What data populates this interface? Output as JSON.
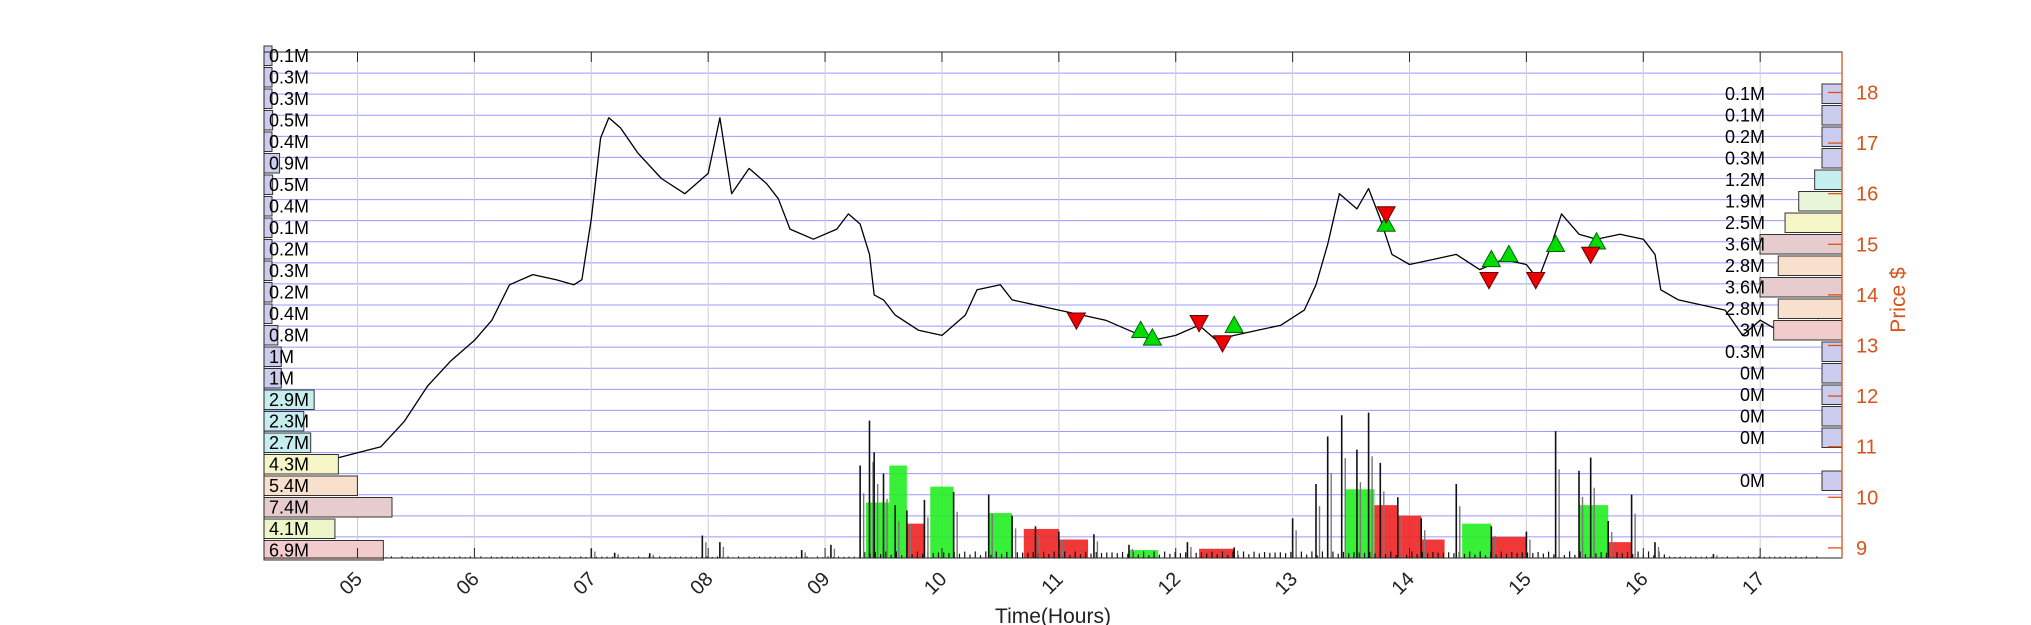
{
  "chart_data": {
    "type": "line",
    "xlabel": "Time(Hours)",
    "ylabel": "Price $",
    "xlim": [
      4.2,
      17.7
    ],
    "ylim": [
      8.8,
      18.8
    ],
    "x_ticks": [
      "05",
      "06",
      "07",
      "08",
      "09",
      "10",
      "11",
      "12",
      "13",
      "14",
      "15",
      "16",
      "17"
    ],
    "y_ticks": [
      9,
      10,
      11,
      12,
      13,
      14,
      15,
      16,
      17,
      18
    ],
    "grid": true,
    "colors": {
      "price_line": "#000000",
      "right_axis": "#d95319",
      "grid": "#8080ff",
      "buy_marker": "#00dd00",
      "sell_marker": "#ee0000",
      "volume_up": "#22ee22",
      "volume_down": "#ee2222"
    },
    "price_series": [
      [
        4.7,
        10.7
      ],
      [
        4.95,
        10.85
      ],
      [
        5.2,
        11.0
      ],
      [
        5.4,
        11.5
      ],
      [
        5.6,
        12.2
      ],
      [
        5.8,
        12.7
      ],
      [
        6.0,
        13.1
      ],
      [
        6.15,
        13.5
      ],
      [
        6.3,
        14.2
      ],
      [
        6.5,
        14.4
      ],
      [
        6.7,
        14.3
      ],
      [
        6.85,
        14.2
      ],
      [
        6.92,
        14.3
      ],
      [
        7.0,
        15.5
      ],
      [
        7.08,
        17.1
      ],
      [
        7.15,
        17.5
      ],
      [
        7.25,
        17.3
      ],
      [
        7.4,
        16.8
      ],
      [
        7.6,
        16.3
      ],
      [
        7.8,
        16.0
      ],
      [
        8.0,
        16.4
      ],
      [
        8.1,
        17.5
      ],
      [
        8.2,
        16.0
      ],
      [
        8.35,
        16.5
      ],
      [
        8.5,
        16.2
      ],
      [
        8.6,
        15.9
      ],
      [
        8.7,
        15.3
      ],
      [
        8.9,
        15.1
      ],
      [
        9.1,
        15.3
      ],
      [
        9.2,
        15.6
      ],
      [
        9.3,
        15.4
      ],
      [
        9.38,
        14.8
      ],
      [
        9.42,
        14.0
      ],
      [
        9.5,
        13.9
      ],
      [
        9.6,
        13.6
      ],
      [
        9.8,
        13.3
      ],
      [
        10.0,
        13.2
      ],
      [
        10.2,
        13.6
      ],
      [
        10.3,
        14.1
      ],
      [
        10.5,
        14.2
      ],
      [
        10.6,
        13.9
      ],
      [
        10.8,
        13.8
      ],
      [
        11.0,
        13.7
      ],
      [
        11.2,
        13.6
      ],
      [
        11.4,
        13.5
      ],
      [
        11.6,
        13.3
      ],
      [
        11.8,
        13.1
      ],
      [
        12.0,
        13.2
      ],
      [
        12.2,
        13.4
      ],
      [
        12.35,
        13.1
      ],
      [
        12.5,
        13.2
      ],
      [
        12.7,
        13.3
      ],
      [
        12.9,
        13.4
      ],
      [
        13.1,
        13.7
      ],
      [
        13.2,
        14.2
      ],
      [
        13.3,
        15.0
      ],
      [
        13.4,
        16.0
      ],
      [
        13.55,
        15.7
      ],
      [
        13.65,
        16.1
      ],
      [
        13.75,
        15.5
      ],
      [
        13.85,
        14.8
      ],
      [
        14.0,
        14.6
      ],
      [
        14.2,
        14.7
      ],
      [
        14.4,
        14.8
      ],
      [
        14.6,
        14.5
      ],
      [
        14.8,
        14.7
      ],
      [
        15.0,
        14.6
      ],
      [
        15.1,
        14.3
      ],
      [
        15.2,
        14.9
      ],
      [
        15.3,
        15.6
      ],
      [
        15.45,
        15.2
      ],
      [
        15.6,
        15.1
      ],
      [
        15.8,
        15.2
      ],
      [
        16.0,
        15.1
      ],
      [
        16.1,
        14.8
      ],
      [
        16.15,
        14.1
      ],
      [
        16.3,
        13.9
      ],
      [
        16.5,
        13.8
      ],
      [
        16.7,
        13.7
      ],
      [
        16.85,
        13.2
      ],
      [
        17.0,
        13.5
      ],
      [
        17.15,
        13.3
      ],
      [
        17.35,
        13.4
      ],
      [
        17.5,
        13.5
      ]
    ],
    "buy_markers": [
      [
        11.7,
        13.3
      ],
      [
        11.8,
        13.15
      ],
      [
        12.5,
        13.4
      ],
      [
        13.8,
        15.4
      ],
      [
        14.7,
        14.7
      ],
      [
        14.85,
        14.8
      ],
      [
        15.25,
        15.0
      ],
      [
        15.6,
        15.05
      ]
    ],
    "sell_markers": [
      [
        11.15,
        13.5
      ],
      [
        12.2,
        13.45
      ],
      [
        12.4,
        13.05
      ],
      [
        13.8,
        15.6
      ],
      [
        14.68,
        14.3
      ],
      [
        15.08,
        14.3
      ],
      [
        15.55,
        14.8
      ]
    ],
    "volume_profile_left": {
      "labels": [
        "0.1M",
        "0.3M",
        "0.3M",
        "0.5M",
        "0.4M",
        "0.9M",
        "0.5M",
        "0.4M",
        "0.1M",
        "0.2M",
        "0.3M",
        "0.2M",
        "0.4M",
        "0.8M",
        "1M",
        "1M",
        "2.9M",
        "2.3M",
        "2.7M",
        "4.3M",
        "5.4M",
        "7.4M",
        "4.1M",
        "6.9M"
      ],
      "values": [
        0.1,
        0.3,
        0.3,
        0.5,
        0.4,
        0.9,
        0.5,
        0.4,
        0.1,
        0.2,
        0.3,
        0.2,
        0.4,
        0.8,
        1.0,
        1.0,
        2.9,
        2.3,
        2.7,
        4.3,
        5.4,
        7.4,
        4.1,
        6.9
      ],
      "colors": [
        "#ccccee",
        "#ccccee",
        "#ccccee",
        "#ccccee",
        "#ccccee",
        "#ccccee",
        "#ccccee",
        "#ccccee",
        "#ccccee",
        "#ccccee",
        "#ccccee",
        "#ccccee",
        "#ccccee",
        "#ccccee",
        "#ccccee",
        "#ccccee",
        "#c7eeee",
        "#c7eeee",
        "#c7eeee",
        "#f5f5c8",
        "#f8e0cc",
        "#e6cccc",
        "#eef5c8",
        "#f2cccc"
      ]
    },
    "volume_profile_right": {
      "labels": [
        "0.1M",
        "0.1M",
        "0.2M",
        "0.3M",
        "1.2M",
        "1.9M",
        "2.5M",
        "3.6M",
        "2.8M",
        "3.6M",
        "2.8M",
        "3M",
        "0.3M",
        "0M",
        "0M",
        "0M",
        "0M",
        "",
        "0M"
      ],
      "values": [
        0.1,
        0.1,
        0.2,
        0.3,
        1.2,
        1.9,
        2.5,
        3.6,
        2.8,
        3.6,
        2.8,
        3.0,
        0.3,
        0,
        0,
        0,
        0,
        0,
        0
      ],
      "colors": [
        "#ccccee",
        "#ccccee",
        "#ccccee",
        "#ccccee",
        "#c7eeee",
        "#e8f5d8",
        "#f5f5c8",
        "#e6cccc",
        "#f8e0cc",
        "#e6cccc",
        "#f8e0cc",
        "#f2cccc",
        "#ccccee",
        "#ccccee",
        "#ccccee",
        "#ccccee",
        "#ccccee",
        "#ffffff",
        "#ccccee"
      ]
    },
    "volume_spikes": [
      [
        7.0,
        0.35
      ],
      [
        7.2,
        0.2
      ],
      [
        7.5,
        0.18
      ],
      [
        7.95,
        0.85
      ],
      [
        8.1,
        0.6
      ],
      [
        8.8,
        0.3
      ],
      [
        9.05,
        0.5
      ],
      [
        9.3,
        3.5
      ],
      [
        9.38,
        5.2
      ],
      [
        9.42,
        4.0
      ],
      [
        9.5,
        3.2
      ],
      [
        9.6,
        2.0
      ],
      [
        9.7,
        1.8
      ],
      [
        9.85,
        2.2
      ],
      [
        10.1,
        2.5
      ],
      [
        10.4,
        2.4
      ],
      [
        10.6,
        1.6
      ],
      [
        10.8,
        1.2
      ],
      [
        11.0,
        1.0
      ],
      [
        11.3,
        0.9
      ],
      [
        11.6,
        0.5
      ],
      [
        12.1,
        0.6
      ],
      [
        12.5,
        0.4
      ],
      [
        13.0,
        1.5
      ],
      [
        13.2,
        2.8
      ],
      [
        13.3,
        4.6
      ],
      [
        13.42,
        5.4
      ],
      [
        13.55,
        4.1
      ],
      [
        13.65,
        5.5
      ],
      [
        13.75,
        3.6
      ],
      [
        13.9,
        2.3
      ],
      [
        14.1,
        1.5
      ],
      [
        14.4,
        2.8
      ],
      [
        14.7,
        1.2
      ],
      [
        15.0,
        1.0
      ],
      [
        15.25,
        4.8
      ],
      [
        15.45,
        3.3
      ],
      [
        15.55,
        3.8
      ],
      [
        15.7,
        1.4
      ],
      [
        15.9,
        2.4
      ],
      [
        16.1,
        0.6
      ],
      [
        16.6,
        0.15
      ]
    ],
    "volume_blocks": [
      [
        9.35,
        9.55,
        2.1,
        "up"
      ],
      [
        9.55,
        9.7,
        3.5,
        "up"
      ],
      [
        9.7,
        9.85,
        1.3,
        "down"
      ],
      [
        9.9,
        10.1,
        2.7,
        "up"
      ],
      [
        10.4,
        10.6,
        1.7,
        "up"
      ],
      [
        10.7,
        11.0,
        1.1,
        "down"
      ],
      [
        11.0,
        11.25,
        0.7,
        "down"
      ],
      [
        11.6,
        11.85,
        0.3,
        "up"
      ],
      [
        12.2,
        12.5,
        0.35,
        "down"
      ],
      [
        13.45,
        13.7,
        2.6,
        "up"
      ],
      [
        13.7,
        13.9,
        2.0,
        "down"
      ],
      [
        13.9,
        14.1,
        1.6,
        "down"
      ],
      [
        14.1,
        14.3,
        0.7,
        "down"
      ],
      [
        14.45,
        14.7,
        1.3,
        "up"
      ],
      [
        14.7,
        15.0,
        0.8,
        "down"
      ],
      [
        15.45,
        15.7,
        2.0,
        "up"
      ],
      [
        15.7,
        15.9,
        0.6,
        "down"
      ]
    ],
    "volume_axis_max": 7.0
  }
}
